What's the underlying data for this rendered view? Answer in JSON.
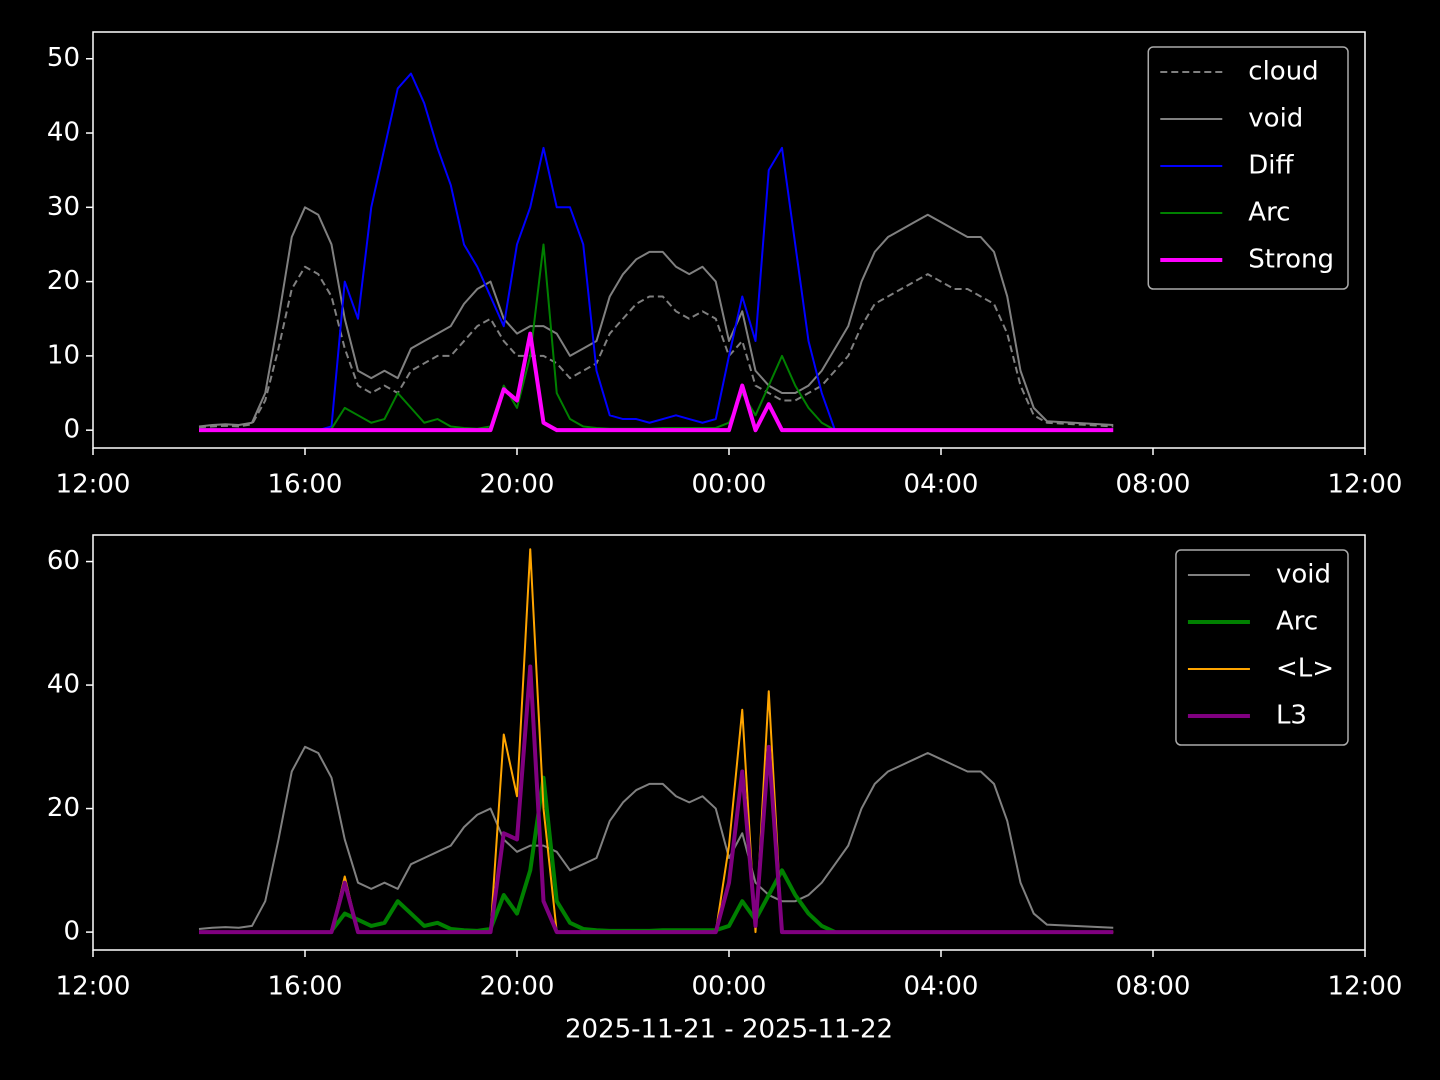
{
  "chart_data": [
    {
      "type": "line",
      "x": [
        "2025-11-21T14:00",
        "2025-11-21T14:15",
        "2025-11-21T14:30",
        "2025-11-21T14:45",
        "2025-11-21T15:00",
        "2025-11-21T15:15",
        "2025-11-21T15:30",
        "2025-11-21T15:45",
        "2025-11-21T16:00",
        "2025-11-21T16:15",
        "2025-11-21T16:30",
        "2025-11-21T16:45",
        "2025-11-21T17:00",
        "2025-11-21T17:15",
        "2025-11-21T17:30",
        "2025-11-21T17:45",
        "2025-11-21T18:00",
        "2025-11-21T18:15",
        "2025-11-21T18:30",
        "2025-11-21T18:45",
        "2025-11-21T19:00",
        "2025-11-21T19:15",
        "2025-11-21T19:30",
        "2025-11-21T19:45",
        "2025-11-21T20:00",
        "2025-11-21T20:15",
        "2025-11-21T20:30",
        "2025-11-21T20:45",
        "2025-11-21T21:00",
        "2025-11-21T21:15",
        "2025-11-21T21:30",
        "2025-11-21T21:45",
        "2025-11-21T22:00",
        "2025-11-21T22:15",
        "2025-11-21T22:30",
        "2025-11-21T22:45",
        "2025-11-21T23:00",
        "2025-11-21T23:15",
        "2025-11-21T23:30",
        "2025-11-21T23:45",
        "2025-11-22T00:00",
        "2025-11-22T00:15",
        "2025-11-22T00:30",
        "2025-11-22T00:45",
        "2025-11-22T01:00",
        "2025-11-22T01:15",
        "2025-11-22T01:30",
        "2025-11-22T01:45",
        "2025-11-22T02:00",
        "2025-11-22T02:15",
        "2025-11-22T02:30",
        "2025-11-22T02:45",
        "2025-11-22T03:00",
        "2025-11-22T03:15",
        "2025-11-22T03:30",
        "2025-11-22T03:45",
        "2025-11-22T04:00",
        "2025-11-22T04:15",
        "2025-11-22T04:30",
        "2025-11-22T04:45",
        "2025-11-22T05:00",
        "2025-11-22T05:15",
        "2025-11-22T05:30",
        "2025-11-22T05:45",
        "2025-11-22T06:00",
        "2025-11-22T06:15",
        "2025-11-22T06:30",
        "2025-11-22T06:45",
        "2025-11-22T07:00",
        "2025-11-22T07:15"
      ],
      "series": [
        {
          "name": "cloud",
          "color": "#808080",
          "style": "dashed",
          "values": [
            0.4,
            0.5,
            0.6,
            0.5,
            0.8,
            4,
            11,
            19,
            22,
            21,
            18,
            11,
            6,
            5,
            6,
            5,
            8,
            9,
            10,
            10,
            12,
            14,
            15,
            12,
            10,
            10,
            10,
            9,
            7,
            8,
            9,
            13,
            15,
            17,
            18,
            18,
            16,
            15,
            16,
            15,
            10,
            12,
            6,
            5,
            4,
            4,
            5,
            6,
            8,
            10,
            14,
            17,
            18,
            19,
            20,
            21,
            20,
            19,
            19,
            18,
            17,
            13,
            6,
            2,
            1,
            0.9,
            0.8,
            0.7,
            0.6,
            0.5
          ]
        },
        {
          "name": "void",
          "color": "#808080",
          "style": "solid",
          "values": [
            0.5,
            0.7,
            0.8,
            0.7,
            1,
            5,
            15,
            26,
            30,
            29,
            25,
            15,
            8,
            7,
            8,
            7,
            11,
            12,
            13,
            14,
            17,
            19,
            20,
            15,
            13,
            14,
            14,
            13,
            10,
            11,
            12,
            18,
            21,
            23,
            24,
            24,
            22,
            21,
            22,
            20,
            12,
            16,
            8,
            6,
            5,
            5,
            6,
            8,
            11,
            14,
            20,
            24,
            26,
            27,
            28,
            29,
            28,
            27,
            26,
            26,
            24,
            18,
            8,
            3,
            1.2,
            1.1,
            1,
            0.9,
            0.8,
            0.7
          ]
        },
        {
          "name": "Diff",
          "color": "#0000ff",
          "style": "solid",
          "values": [
            null,
            null,
            null,
            null,
            null,
            null,
            null,
            null,
            0,
            0,
            0.5,
            20,
            15,
            30,
            38,
            46,
            48,
            44,
            38,
            33,
            25,
            22,
            18,
            14,
            25,
            30,
            38,
            30,
            30,
            25,
            8,
            2,
            1.5,
            1.5,
            1,
            1.5,
            2,
            1.5,
            1,
            1.5,
            10,
            18,
            12,
            35,
            38,
            25,
            12,
            5,
            0,
            null,
            null,
            null,
            null,
            null,
            null,
            null,
            null,
            null,
            null,
            null,
            null,
            null,
            null,
            null,
            null,
            null,
            null,
            null,
            null,
            null
          ]
        },
        {
          "name": "Arc",
          "color": "#008000",
          "style": "solid",
          "values": [
            null,
            null,
            null,
            null,
            null,
            null,
            null,
            null,
            null,
            null,
            0.2,
            3,
            2,
            1,
            1.5,
            5,
            3,
            1,
            1.5,
            0.5,
            0.3,
            0.2,
            0.5,
            6,
            3,
            10,
            25,
            5,
            1.5,
            0.5,
            0.3,
            0.2,
            0.2,
            0.2,
            0.2,
            0.3,
            0.3,
            0.3,
            0.3,
            0.3,
            1,
            5,
            2,
            6,
            10,
            6,
            3,
            1,
            0,
            null,
            null,
            null,
            null,
            null,
            null,
            null,
            null,
            null,
            null,
            null,
            null,
            null,
            null,
            null,
            null,
            null,
            null,
            null,
            null,
            null
          ]
        },
        {
          "name": "Strong",
          "color": "#ff00ff",
          "style": "thick",
          "values": [
            0,
            0,
            0,
            0,
            0,
            0,
            0,
            0,
            0,
            0,
            0,
            0,
            0,
            0,
            0,
            0,
            0,
            0,
            0,
            0,
            0,
            0,
            0,
            5.5,
            4,
            13,
            1,
            0,
            0,
            0,
            0,
            0,
            0,
            0,
            0,
            0,
            0,
            0,
            0,
            0,
            0,
            6,
            0,
            3.5,
            0,
            0,
            0,
            0,
            0,
            0,
            0,
            0,
            0,
            0,
            0,
            0,
            0,
            0,
            0,
            0,
            0,
            0,
            0,
            0,
            0,
            0,
            0,
            0,
            0,
            0
          ]
        }
      ],
      "xlim": [
        "2025-11-21T12:00",
        "2025-11-22T12:00"
      ],
      "xticks": [
        {
          "value": "2025-11-21T12:00",
          "label": "12:00"
        },
        {
          "value": "2025-11-21T16:00",
          "label": "16:00"
        },
        {
          "value": "2025-11-21T20:00",
          "label": "20:00"
        },
        {
          "value": "2025-11-22T00:00",
          "label": "00:00"
        },
        {
          "value": "2025-11-22T04:00",
          "label": "04:00"
        },
        {
          "value": "2025-11-22T08:00",
          "label": "08:00"
        },
        {
          "value": "2025-11-22T12:00",
          "label": "12:00"
        }
      ],
      "ylim": [
        -2.4,
        53.6
      ],
      "yticks": [
        0,
        10,
        20,
        30,
        40,
        50
      ],
      "legend": "upper right"
    },
    {
      "type": "line",
      "x": [
        "2025-11-21T14:00",
        "2025-11-21T14:15",
        "2025-11-21T14:30",
        "2025-11-21T14:45",
        "2025-11-21T15:00",
        "2025-11-21T15:15",
        "2025-11-21T15:30",
        "2025-11-21T15:45",
        "2025-11-21T16:00",
        "2025-11-21T16:15",
        "2025-11-21T16:30",
        "2025-11-21T16:45",
        "2025-11-21T17:00",
        "2025-11-21T17:15",
        "2025-11-21T17:30",
        "2025-11-21T17:45",
        "2025-11-21T18:00",
        "2025-11-21T18:15",
        "2025-11-21T18:30",
        "2025-11-21T18:45",
        "2025-11-21T19:00",
        "2025-11-21T19:15",
        "2025-11-21T19:30",
        "2025-11-21T19:45",
        "2025-11-21T20:00",
        "2025-11-21T20:15",
        "2025-11-21T20:30",
        "2025-11-21T20:45",
        "2025-11-21T21:00",
        "2025-11-21T21:15",
        "2025-11-21T21:30",
        "2025-11-21T21:45",
        "2025-11-21T22:00",
        "2025-11-21T22:15",
        "2025-11-21T22:30",
        "2025-11-21T22:45",
        "2025-11-21T23:00",
        "2025-11-21T23:15",
        "2025-11-21T23:30",
        "2025-11-21T23:45",
        "2025-11-22T00:00",
        "2025-11-22T00:15",
        "2025-11-22T00:30",
        "2025-11-22T00:45",
        "2025-11-22T01:00",
        "2025-11-22T01:15",
        "2025-11-22T01:30",
        "2025-11-22T01:45",
        "2025-11-22T02:00",
        "2025-11-22T02:15",
        "2025-11-22T02:30",
        "2025-11-22T02:45",
        "2025-11-22T03:00",
        "2025-11-22T03:15",
        "2025-11-22T03:30",
        "2025-11-22T03:45",
        "2025-11-22T04:00",
        "2025-11-22T04:15",
        "2025-11-22T04:30",
        "2025-11-22T04:45",
        "2025-11-22T05:00",
        "2025-11-22T05:15",
        "2025-11-22T05:30",
        "2025-11-22T05:45",
        "2025-11-22T06:00",
        "2025-11-22T06:15",
        "2025-11-22T06:30",
        "2025-11-22T06:45",
        "2025-11-22T07:00",
        "2025-11-22T07:15"
      ],
      "series": [
        {
          "name": "void",
          "color": "#808080",
          "style": "solid",
          "values": [
            0.5,
            0.7,
            0.8,
            0.7,
            1,
            5,
            15,
            26,
            30,
            29,
            25,
            15,
            8,
            7,
            8,
            7,
            11,
            12,
            13,
            14,
            17,
            19,
            20,
            15,
            13,
            14,
            14,
            13,
            10,
            11,
            12,
            18,
            21,
            23,
            24,
            24,
            22,
            21,
            22,
            20,
            12,
            16,
            8,
            6,
            5,
            5,
            6,
            8,
            11,
            14,
            20,
            24,
            26,
            27,
            28,
            29,
            28,
            27,
            26,
            26,
            24,
            18,
            8,
            3,
            1.2,
            1.1,
            1,
            0.9,
            0.8,
            0.7
          ]
        },
        {
          "name": "Arc",
          "color": "#008000",
          "style": "thick",
          "values": [
            null,
            null,
            null,
            null,
            null,
            null,
            null,
            null,
            null,
            null,
            0.2,
            3,
            2,
            1,
            1.5,
            5,
            3,
            1,
            1.5,
            0.5,
            0.3,
            0.2,
            0.5,
            6,
            3,
            10,
            25,
            5,
            1.5,
            0.5,
            0.3,
            0.2,
            0.2,
            0.2,
            0.2,
            0.3,
            0.3,
            0.3,
            0.3,
            0.3,
            1,
            5,
            2,
            6,
            10,
            6,
            3,
            1,
            0,
            null,
            null,
            null,
            null,
            null,
            null,
            null,
            null,
            null,
            null,
            null,
            null,
            null,
            null,
            null,
            null,
            null,
            null,
            null,
            null,
            null
          ]
        },
        {
          "name": "<L>",
          "color": "#ffa500",
          "style": "solid",
          "values": [
            0,
            0,
            0,
            0,
            0,
            0,
            0,
            0,
            0,
            0,
            0,
            9,
            0,
            0,
            0,
            0,
            0,
            0,
            0,
            0,
            0,
            0,
            0,
            32,
            22,
            62,
            20,
            0,
            0,
            0,
            0,
            0,
            0,
            0,
            0,
            0,
            0,
            0,
            0,
            0,
            14,
            36,
            0,
            39,
            0,
            0,
            0,
            0,
            0,
            0,
            0,
            0,
            0,
            0,
            0,
            0,
            0,
            0,
            0,
            0,
            0,
            0,
            0,
            0,
            0,
            0,
            0,
            0,
            0,
            0
          ]
        },
        {
          "name": "L3",
          "color": "#800080",
          "style": "thick",
          "values": [
            0,
            0,
            0,
            0,
            0,
            0,
            0,
            0,
            0,
            0,
            0,
            8,
            0,
            0,
            0,
            0,
            0,
            0,
            0,
            0,
            0,
            0,
            0,
            16,
            15,
            43,
            5,
            0,
            0,
            0,
            0,
            0,
            0,
            0,
            0,
            0,
            0,
            0,
            0,
            0,
            8,
            26,
            1,
            30,
            0,
            0,
            0,
            0,
            0,
            0,
            0,
            0,
            0,
            0,
            0,
            0,
            0,
            0,
            0,
            0,
            0,
            0,
            0,
            0,
            0,
            0,
            0,
            0,
            0,
            0
          ]
        }
      ],
      "xlim": [
        "2025-11-21T12:00",
        "2025-11-22T12:00"
      ],
      "xticks": [
        {
          "value": "2025-11-21T12:00",
          "label": "12:00"
        },
        {
          "value": "2025-11-21T16:00",
          "label": "16:00"
        },
        {
          "value": "2025-11-21T20:00",
          "label": "20:00"
        },
        {
          "value": "2025-11-22T00:00",
          "label": "00:00"
        },
        {
          "value": "2025-11-22T04:00",
          "label": "04:00"
        },
        {
          "value": "2025-11-22T08:00",
          "label": "08:00"
        },
        {
          "value": "2025-11-22T12:00",
          "label": "12:00"
        }
      ],
      "ylim": [
        -2.9,
        64.3
      ],
      "yticks": [
        0,
        20,
        40,
        60
      ],
      "xlabel": "2025-11-21 - 2025-11-22",
      "legend": "upper right"
    }
  ]
}
